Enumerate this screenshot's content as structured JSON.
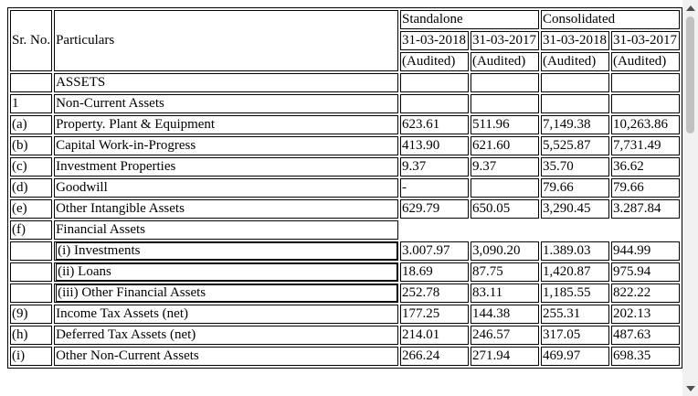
{
  "header": {
    "sr_no": "Sr. No.",
    "particulars": "Particulars",
    "standalone": "Standalone",
    "consolidated": "Consolidated",
    "dates": [
      "31-03-2018",
      "31-03-2017",
      "31-03-2018",
      "31-03-2017"
    ],
    "audited": [
      "(Audited)",
      "(Audited)",
      "(Audited)",
      "(Audited)"
    ]
  },
  "rows": [
    {
      "sr": "",
      "label": "ASSETS",
      "vals": [
        "",
        "",
        "",
        ""
      ]
    },
    {
      "sr": "1",
      "label": "Non-Current Assets",
      "vals": [
        "",
        "",
        "",
        ""
      ]
    },
    {
      "sr": "(a)",
      "label": "Property. Plant & Equipment",
      "vals": [
        "623.61",
        "511.96",
        "7,149.38",
        "10,263.86"
      ]
    },
    {
      "sr": "(b)",
      "label": "Capital Work-in-Progress",
      "vals": [
        "413.90",
        "621.60",
        "5,525.87",
        "7,731.49"
      ]
    },
    {
      "sr": "(c)",
      "label": "Investment Properties",
      "vals": [
        "9.37",
        "9.37",
        "35.70",
        "36.62"
      ]
    },
    {
      "sr": "(d)",
      "label": "Goodwill",
      "vals": [
        "-",
        "",
        "79.66",
        "79.66"
      ]
    },
    {
      "sr": "(e)",
      "label": "Other Intangible Assets",
      "vals": [
        "629.79",
        "650.05",
        "3,290.45",
        "3.287.84"
      ]
    },
    {
      "sr": "(f)",
      "label": "Financial Assets",
      "vals": null
    },
    {
      "sr": "",
      "label": "(i) Investments",
      "vals": [
        "3.007.97",
        "3,090.20",
        "1.389.03",
        "944.99"
      ],
      "sub": true
    },
    {
      "sr": "",
      "label": "(ii) Loans",
      "vals": [
        "18.69",
        "87.75",
        "1,420.87",
        "975.94"
      ],
      "sub": true
    },
    {
      "sr": "",
      "label": "(iii) Other Financial Assets",
      "vals": [
        "252.78",
        "83.11",
        "1,185.55",
        "822.22"
      ],
      "sub": true
    },
    {
      "sr": "(9)",
      "label": "Income Tax Assets (net)",
      "vals": [
        "177.25",
        "144.38",
        "255.31",
        "202.13"
      ]
    },
    {
      "sr": "(h)",
      "label": "Deferred Tax Assets (net)",
      "vals": [
        "214.01",
        "246.57",
        "317.05",
        "487.63"
      ]
    },
    {
      "sr": "(i)",
      "label": "Other Non-Current Assets",
      "vals": [
        "266.24",
        "271.94",
        "469.97",
        "698.35"
      ]
    }
  ]
}
